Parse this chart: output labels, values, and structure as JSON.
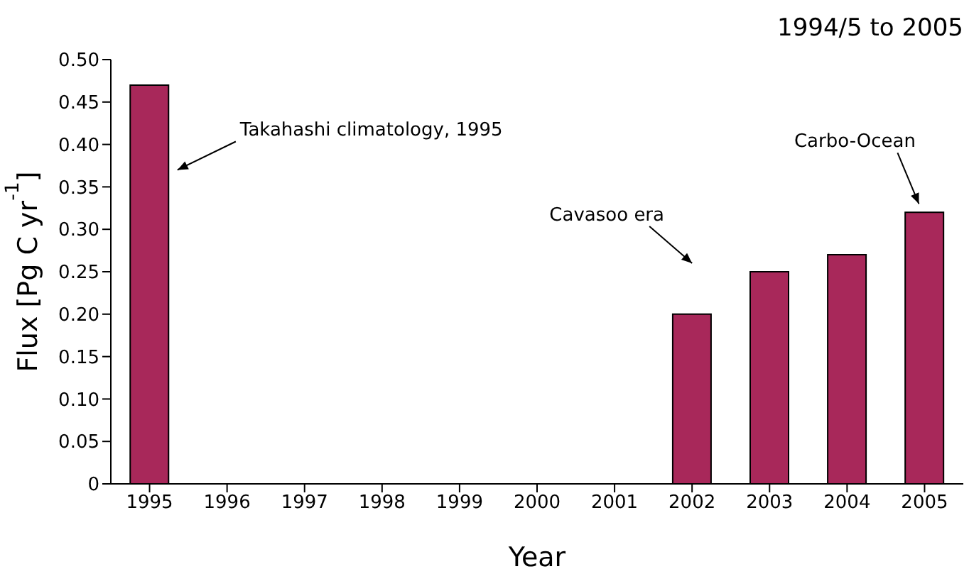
{
  "chart_data": {
    "type": "bar",
    "title": "1994/5 to 2005",
    "xlabel": "Year",
    "ylabel": "Flux [Pg C yr$^{-1}$]",
    "categories": [
      "1995",
      "1996",
      "1997",
      "1998",
      "1999",
      "2000",
      "2001",
      "2002",
      "2003",
      "2004",
      "2005"
    ],
    "values": [
      0.47,
      null,
      null,
      null,
      null,
      null,
      null,
      0.2,
      0.25,
      0.27,
      0.32
    ],
    "color": "#a8285a",
    "ylim": [
      0,
      0.5
    ],
    "yticks": [
      0,
      0.05,
      {
        "value": 0.1,
        "label": "0.10"
      },
      0.15,
      {
        "value": 0.2,
        "label": "0.20"
      },
      0.25,
      {
        "value": 0.3,
        "label": "0.30"
      },
      0.35,
      {
        "value": 0.4,
        "label": "0.40"
      },
      0.45,
      {
        "value": 0.5,
        "label": "0.50"
      }
    ],
    "grid": false,
    "legend": false,
    "annotations": [
      "Takahashi climatology, 1995",
      "Cavasoo era",
      "Carbo-Ocean"
    ]
  }
}
